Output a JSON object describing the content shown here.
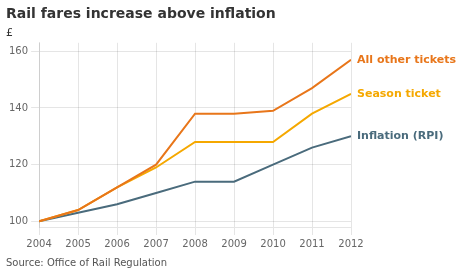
{
  "chart_data": {
    "type": "line",
    "title": "Rail fares increase above inflation",
    "ylabel": "£",
    "source": "Source: Office of Rail Regulation",
    "x": [
      2004,
      2005,
      2006,
      2007,
      2008,
      2009,
      2010,
      2011,
      2012
    ],
    "series": [
      {
        "name": "All other tickets",
        "color": "#e8761a",
        "values": [
          100,
          104,
          112,
          120,
          138,
          138,
          139,
          147,
          157
        ]
      },
      {
        "name": "Season ticket",
        "color": "#f5a800",
        "values": [
          100,
          104,
          112,
          119,
          128,
          128,
          128,
          138,
          145
        ]
      },
      {
        "name": "Inflation (RPI)",
        "color": "#4a6b7c",
        "values": [
          100,
          103,
          106,
          110,
          114,
          114,
          120,
          126,
          130
        ]
      }
    ],
    "xlim": [
      2004,
      2012
    ],
    "xticks": [
      2004,
      2005,
      2006,
      2007,
      2008,
      2009,
      2010,
      2011,
      2012
    ],
    "ylim": [
      98,
      163
    ],
    "yticks": [
      100,
      120,
      140,
      160
    ],
    "grid": true
  }
}
